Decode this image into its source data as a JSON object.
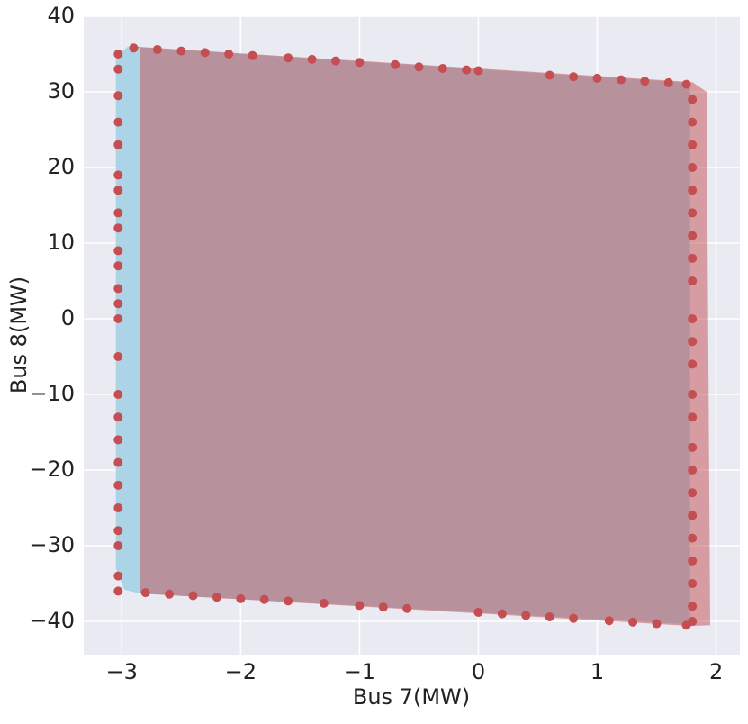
{
  "chart_data": {
    "type": "scatter",
    "xlabel": "Bus 7(MW)",
    "ylabel": "Bus 8(MW)",
    "xlim": [
      -3.32,
      2.2
    ],
    "ylim": [
      -44.4,
      40
    ],
    "xticks": [
      {
        "value": -3,
        "label": "−3"
      },
      {
        "value": -2,
        "label": "−2"
      },
      {
        "value": -1,
        "label": "−1"
      },
      0,
      1,
      2
    ],
    "yticks": [
      {
        "value": -40,
        "label": "−40"
      },
      {
        "value": -30,
        "label": "−30"
      },
      {
        "value": -20,
        "label": "−20"
      },
      {
        "value": -10,
        "label": "−10"
      },
      0,
      10,
      20,
      30,
      40
    ],
    "grid": true,
    "regions": [
      {
        "color": "#a8d4e6",
        "opacity": 0.95,
        "x": [
          -2.95,
          1.78,
          1.78,
          -2.85,
          -2.98,
          -3.05,
          -3.05
        ],
        "y": [
          36.0,
          31.2,
          -40.4,
          -36.3,
          -35.8,
          -33,
          34.5
        ]
      },
      {
        "color": "#c44e52",
        "opacity": 0.5,
        "x": [
          -2.9,
          1.8,
          1.92,
          1.95,
          1.78,
          -2.85,
          -2.85
        ],
        "y": [
          36.0,
          31.3,
          30,
          -40.5,
          -40.6,
          -36.3,
          35.8
        ]
      }
    ],
    "series": [
      {
        "color": "#c44e52",
        "x": [
          -2.9,
          -2.7,
          -2.5,
          -2.3,
          -2.1,
          -1.9,
          -1.6,
          -1.4,
          -1.2,
          -1.0,
          -0.7,
          -0.5,
          -0.3,
          -0.1,
          0.0,
          0.6,
          0.8,
          1.0,
          1.2,
          1.4,
          1.6,
          1.75,
          -2.8,
          -2.6,
          -2.4,
          -2.2,
          -2.0,
          -1.8,
          -1.6,
          -1.3,
          -1.0,
          -0.8,
          -0.6,
          0.0,
          0.2,
          0.4,
          0.6,
          0.8,
          1.1,
          1.3,
          1.5,
          1.75,
          -3.03,
          -3.03,
          -3.03,
          -3.03,
          -3.03,
          -3.03,
          -3.03,
          -3.03,
          -3.03,
          -3.03,
          -3.03,
          -3.03,
          -3.03,
          -3.03,
          -3.03,
          -3.03,
          -3.03,
          -3.03,
          -3.03,
          -3.03,
          -3.03,
          -3.03,
          -3.03,
          -3.03,
          -3.03,
          1.8,
          1.8,
          1.8,
          1.8,
          1.8,
          1.8,
          1.8,
          1.8,
          1.8,
          1.8,
          1.8,
          1.8,
          1.8,
          1.8,
          1.8,
          1.8,
          1.8,
          1.8,
          1.8,
          1.8,
          1.8,
          1.8,
          1.8
        ],
        "y": [
          35.8,
          35.6,
          35.4,
          35.2,
          35.0,
          34.8,
          34.5,
          34.3,
          34.1,
          33.9,
          33.6,
          33.3,
          33.1,
          32.9,
          32.8,
          32.2,
          32.0,
          31.8,
          31.6,
          31.4,
          31.2,
          31.0,
          -36.2,
          -36.4,
          -36.6,
          -36.8,
          -37.0,
          -37.1,
          -37.3,
          -37.6,
          -37.9,
          -38.1,
          -38.3,
          -38.8,
          -39.0,
          -39.2,
          -39.4,
          -39.6,
          -39.9,
          -40.1,
          -40.3,
          -40.5,
          35,
          33,
          29.5,
          26,
          23,
          19,
          17,
          14,
          12,
          9,
          7,
          4,
          2,
          0,
          -5,
          -10,
          -13,
          -16,
          -19,
          -22,
          -25,
          -28,
          -30,
          -34,
          -36,
          29,
          26,
          23,
          20,
          17,
          14,
          11,
          8,
          5,
          0,
          -3,
          -6,
          -10,
          -13,
          -17,
          -20,
          -23,
          -26,
          -29,
          -32,
          -35,
          -38,
          -40
        ]
      }
    ]
  }
}
